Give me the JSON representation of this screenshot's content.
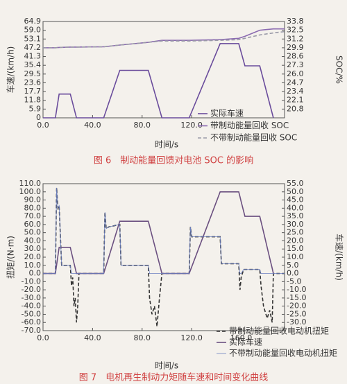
{
  "chart_data": [
    {
      "type": "line",
      "title": "图 6　制动能量回馈对电池 SOC 的影响",
      "x_label": "时间/s",
      "y_label": "车速/(km/h)",
      "y2_label": "SOC/%",
      "xlim": [
        0,
        195
      ],
      "xticks": [
        {
          "value": 0,
          "label": "0.0"
        },
        {
          "value": 40,
          "label": "40.0"
        },
        {
          "value": 80,
          "label": "80.0"
        },
        {
          "value": 120,
          "label": "120.0"
        }
      ],
      "ylim": [
        0,
        64.9
      ],
      "yticks": [
        0,
        5.9,
        11.8,
        17.7,
        23.6,
        29.5,
        35.4,
        41.3,
        47.2,
        53.1,
        {
          "value": 59,
          "label": "59.0"
        },
        64.9
      ],
      "y2lim": [
        19.5,
        33.8
      ],
      "y2ticks": [
        20.8,
        22.1,
        23.4,
        24.7,
        {
          "value": 26,
          "label": "26.0"
        },
        27.3,
        28.6,
        29.9,
        31.2,
        32.5,
        33.8
      ],
      "x": [
        0,
        10,
        13,
        22,
        27,
        49,
        62,
        85,
        96,
        118,
        143,
        158,
        163,
        175,
        186,
        195
      ],
      "series": [
        {
          "name": "实际车速",
          "color": "#6a4c9c",
          "linestyle": "solid",
          "values": [
            0,
            0,
            16,
            16,
            0,
            0,
            32,
            32,
            0,
            0,
            50,
            50,
            35,
            35,
            0,
            null
          ]
        },
        {
          "name": "带制动能量回收 SOC",
          "color": "#8a6ab0",
          "linestyle": "solid",
          "axis": "y2",
          "values": [
            29.9,
            29.9,
            29.95,
            30.0,
            30.0,
            30.05,
            30.3,
            30.7,
            31.0,
            31.0,
            31.1,
            31.3,
            31.6,
            32.5,
            32.7,
            32.7
          ]
        },
        {
          "name": "不带制动能量回收 SOC",
          "color": "#9a9aa8",
          "linestyle": "dashed",
          "axis": "y2",
          "values": [
            29.9,
            29.9,
            29.95,
            30.0,
            30.0,
            30.05,
            30.3,
            30.7,
            30.9,
            30.9,
            31.0,
            31.1,
            31.3,
            31.8,
            32.1,
            32.3
          ]
        }
      ]
    },
    {
      "type": "line",
      "title": "图 7　电机再生制动力矩随车速和时间变化曲线",
      "x_label": "时间/s",
      "y_label": "扭矩/(N·m)",
      "y2_label": "车速/(km/h)",
      "xlim": [
        0,
        195
      ],
      "xticks": [
        {
          "value": 0,
          "label": "0.0"
        },
        {
          "value": 40,
          "label": "40.0"
        },
        {
          "value": 80,
          "label": "80.0"
        },
        {
          "value": 120,
          "label": "120.0"
        },
        {
          "value": 160,
          "label": "160.0"
        }
      ],
      "ylim": [
        -70,
        110
      ],
      "yticks": [
        {
          "value": 110,
          "label": "110.0"
        },
        {
          "value": 100,
          "label": "100.0"
        },
        {
          "value": 90,
          "label": "90.0"
        },
        {
          "value": 80,
          "label": "80.0"
        },
        {
          "value": 70,
          "label": "70.0"
        },
        {
          "value": 60,
          "label": "60.0"
        },
        {
          "value": 50,
          "label": "50.0"
        },
        {
          "value": 40,
          "label": "40.0"
        },
        {
          "value": 30,
          "label": "30.0"
        },
        {
          "value": 20,
          "label": "20.0"
        },
        {
          "value": 10,
          "label": "10.0"
        },
        {
          "value": 0,
          "label": "0.0"
        },
        {
          "value": -10,
          "label": "-10.0"
        },
        {
          "value": -20,
          "label": "-20.0"
        },
        {
          "value": -30,
          "label": "-30.0"
        },
        {
          "value": -40,
          "label": "-40.0"
        },
        {
          "value": -50,
          "label": "-50.0"
        },
        {
          "value": -60,
          "label": "-60.0"
        },
        {
          "value": -70,
          "label": "-70.0"
        }
      ],
      "y2lim": [
        -35,
        55
      ],
      "y2ticks": [
        {
          "value": 55,
          "label": "55.0"
        },
        {
          "value": 50,
          "label": "50.0"
        },
        {
          "value": 45,
          "label": "45.0"
        },
        {
          "value": 40,
          "label": "40.0"
        },
        {
          "value": 35,
          "label": "35.0"
        },
        {
          "value": 30,
          "label": "30.0"
        },
        {
          "value": 25,
          "label": "25.0"
        },
        {
          "value": 20,
          "label": "20.0"
        },
        {
          "value": 15,
          "label": "15.0"
        },
        {
          "value": 10,
          "label": "10.0"
        },
        {
          "value": 5,
          "label": "5.0"
        },
        {
          "value": 0,
          "label": "0.0"
        },
        {
          "value": -5,
          "label": "-5.0"
        },
        {
          "value": -10,
          "label": "-10.0"
        },
        {
          "value": -15,
          "label": "-15.0"
        },
        {
          "value": -20,
          "label": "-20.0"
        },
        {
          "value": -25,
          "label": "-25.0"
        },
        {
          "value": -30,
          "label": "-30.0"
        }
      ],
      "x": [
        0,
        10,
        11,
        12,
        13,
        15,
        22,
        23,
        24,
        25,
        26,
        27,
        28,
        29,
        49,
        50,
        51,
        53,
        62,
        63,
        85,
        86,
        88,
        90,
        92,
        94,
        96,
        118,
        119,
        120,
        143,
        144,
        158,
        159,
        160,
        162,
        163,
        175,
        176,
        178,
        181,
        183,
        185,
        186,
        195
      ],
      "series": [
        {
          "name": "带制动能量回收电动机扭矩",
          "color": "#333333",
          "linestyle": "dashed",
          "values": [
            0,
            0,
            105,
            80,
            83,
            10,
            10,
            -15,
            -5,
            -40,
            -30,
            -60,
            -40,
            0,
            0,
            75,
            55,
            57,
            60,
            10,
            10,
            -30,
            -50,
            -40,
            -65,
            -30,
            0,
            0,
            57,
            45,
            45,
            12,
            12,
            -20,
            -5,
            5,
            5,
            5,
            -15,
            -40,
            -55,
            -45,
            -60,
            0,
            0
          ]
        },
        {
          "name": "实际车速",
          "color": "#6b5080",
          "linestyle": "solid",
          "axis": "y2",
          "values": [
            0,
            0,
            5.3,
            10.7,
            16,
            16,
            16,
            12.8,
            9.6,
            6.4,
            3.2,
            0,
            0,
            0,
            0,
            2.5,
            4.9,
            9.8,
            32,
            32,
            32,
            29.1,
            23.3,
            17.5,
            11.6,
            5.8,
            0,
            0,
            2,
            4,
            50,
            50,
            50,
            47,
            44,
            38,
            35,
            35,
            31.8,
            25.5,
            15.9,
            9.5,
            3.2,
            0,
            null
          ]
        },
        {
          "name": "不带制动能量回收电动机扭矩",
          "color": "#6a7fc0",
          "linestyle": "thin",
          "values": [
            0,
            0,
            105,
            80,
            83,
            10,
            10,
            0,
            0,
            0,
            0,
            0,
            0,
            0,
            0,
            75,
            55,
            57,
            60,
            10,
            10,
            0,
            0,
            0,
            0,
            0,
            0,
            0,
            57,
            45,
            45,
            12,
            12,
            0,
            0,
            5,
            5,
            5,
            0,
            0,
            0,
            0,
            0,
            0,
            0
          ]
        }
      ]
    }
  ]
}
